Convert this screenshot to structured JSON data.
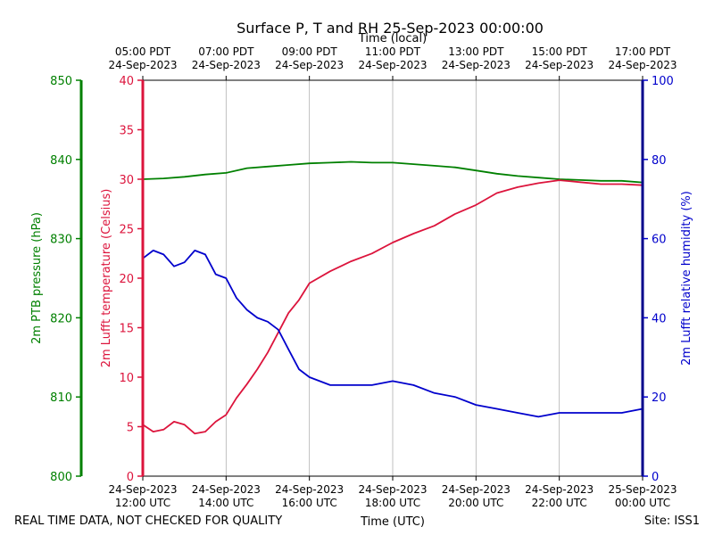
{
  "chart_data": {
    "type": "line",
    "title": "Surface P, T and RH 25-Sep-2023 00:00:00",
    "top_axis_label": "Time (local)",
    "bottom_axis_label": "Time (UTC)",
    "footer_left": "REAL TIME DATA, NOT CHECKED FOR QUALITY",
    "footer_right": "Site: ISS1",
    "x_range_hours": [
      12,
      24
    ],
    "grid": "vertical",
    "top_ticks": [
      {
        "line1": "05:00 PDT",
        "line2": "24-Sep-2023"
      },
      {
        "line1": "07:00 PDT",
        "line2": "24-Sep-2023"
      },
      {
        "line1": "09:00 PDT",
        "line2": "24-Sep-2023"
      },
      {
        "line1": "11:00 PDT",
        "line2": "24-Sep-2023"
      },
      {
        "line1": "13:00 PDT",
        "line2": "24-Sep-2023"
      },
      {
        "line1": "15:00 PDT",
        "line2": "24-Sep-2023"
      },
      {
        "line1": "17:00 PDT",
        "line2": "24-Sep-2023"
      }
    ],
    "bottom_ticks": [
      {
        "line1": "24-Sep-2023",
        "line2": "12:00 UTC"
      },
      {
        "line1": "24-Sep-2023",
        "line2": "14:00 UTC"
      },
      {
        "line1": "24-Sep-2023",
        "line2": "16:00 UTC"
      },
      {
        "line1": "24-Sep-2023",
        "line2": "18:00 UTC"
      },
      {
        "line1": "24-Sep-2023",
        "line2": "20:00 UTC"
      },
      {
        "line1": "24-Sep-2023",
        "line2": "22:00 UTC"
      },
      {
        "line1": "25-Sep-2023",
        "line2": "00:00 UTC"
      }
    ],
    "axes": {
      "pressure": {
        "label": "2m PTB pressure (hPa)",
        "range": [
          800,
          850
        ],
        "ticks": [
          "800",
          "810",
          "820",
          "830",
          "840",
          "850"
        ],
        "color": "#008000"
      },
      "temperature": {
        "label": "2m Lufft temperature (Celsius)",
        "range": [
          0,
          40
        ],
        "ticks": [
          "0",
          "5",
          "10",
          "15",
          "20",
          "25",
          "30",
          "35",
          "40"
        ],
        "color": "#dc143c"
      },
      "humidity": {
        "label": "2m Lufft relative humidity (%)",
        "range": [
          0,
          100
        ],
        "ticks": [
          "0",
          "20",
          "40",
          "60",
          "80",
          "100"
        ],
        "color": "#0000cc"
      }
    },
    "series": [
      {
        "name": "pressure",
        "axis": "pressure",
        "color": "#008000",
        "x": [
          12.0,
          12.5,
          13.0,
          13.5,
          14.0,
          14.5,
          15.0,
          15.5,
          16.0,
          16.5,
          17.0,
          17.5,
          18.0,
          18.5,
          19.0,
          19.5,
          20.0,
          20.5,
          21.0,
          21.5,
          22.0,
          22.5,
          23.0,
          23.5,
          24.0
        ],
        "y": [
          837.5,
          837.6,
          837.8,
          838.1,
          838.3,
          838.9,
          839.1,
          839.3,
          839.5,
          839.6,
          839.7,
          839.6,
          839.6,
          839.4,
          839.2,
          839.0,
          838.6,
          838.2,
          837.9,
          837.7,
          837.5,
          837.4,
          837.3,
          837.3,
          837.1
        ]
      },
      {
        "name": "temperature",
        "axis": "temperature",
        "color": "#dc143c",
        "x": [
          12.0,
          12.25,
          12.5,
          12.75,
          13.0,
          13.25,
          13.5,
          13.75,
          14.0,
          14.25,
          14.5,
          14.75,
          15.0,
          15.25,
          15.5,
          15.75,
          16.0,
          16.5,
          17.0,
          17.5,
          18.0,
          18.5,
          19.0,
          19.5,
          20.0,
          20.5,
          21.0,
          21.5,
          22.0,
          22.5,
          23.0,
          23.5,
          24.0
        ],
        "y": [
          5.2,
          4.5,
          4.7,
          5.5,
          5.2,
          4.3,
          4.5,
          5.5,
          6.2,
          7.9,
          9.3,
          10.8,
          12.5,
          14.5,
          16.5,
          17.8,
          19.5,
          20.7,
          21.7,
          22.5,
          23.6,
          24.5,
          25.3,
          26.5,
          27.4,
          28.6,
          29.2,
          29.6,
          29.9,
          29.7,
          29.5,
          29.5,
          29.4
        ]
      },
      {
        "name": "humidity",
        "axis": "humidity",
        "color": "#0000cc",
        "x": [
          12.0,
          12.25,
          12.5,
          12.75,
          13.0,
          13.25,
          13.5,
          13.75,
          14.0,
          14.25,
          14.5,
          14.75,
          15.0,
          15.25,
          15.5,
          15.75,
          16.0,
          16.5,
          17.0,
          17.5,
          18.0,
          18.5,
          19.0,
          19.5,
          20.0,
          20.5,
          21.0,
          21.5,
          22.0,
          22.5,
          23.0,
          23.5,
          24.0
        ],
        "y": [
          55,
          57,
          56,
          53,
          54,
          57,
          56,
          51,
          50,
          45,
          42,
          40,
          39,
          37,
          32,
          27,
          25,
          23,
          23,
          23,
          24,
          23,
          21,
          20,
          18,
          17,
          16,
          15,
          16,
          16,
          16,
          16,
          17
        ]
      }
    ]
  }
}
